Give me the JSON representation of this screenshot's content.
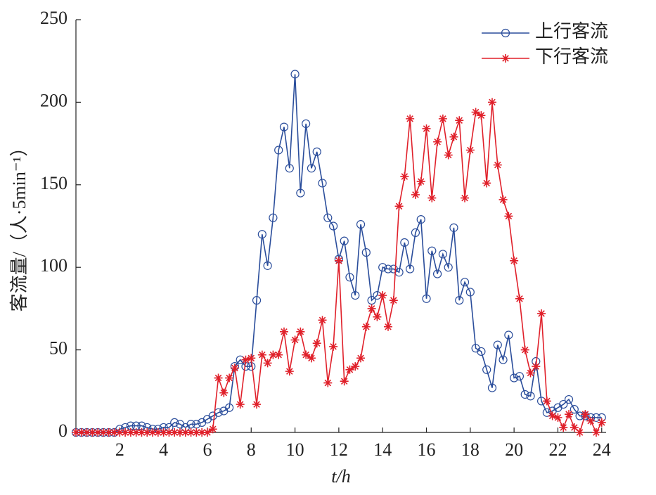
{
  "chart_data": {
    "type": "line",
    "xlabel": "t/h",
    "ylabel": "客流量/（人·5min⁻¹）",
    "x": [
      0,
      0.25,
      0.5,
      0.75,
      1,
      1.25,
      1.5,
      1.75,
      2,
      2.25,
      2.5,
      2.75,
      3,
      3.25,
      3.5,
      3.75,
      4,
      4.25,
      4.5,
      4.75,
      5,
      5.25,
      5.5,
      5.75,
      6,
      6.25,
      6.5,
      6.75,
      7,
      7.25,
      7.5,
      7.75,
      8,
      8.25,
      8.5,
      8.75,
      9,
      9.25,
      9.5,
      9.75,
      10,
      10.25,
      10.5,
      10.75,
      11,
      11.25,
      11.5,
      11.75,
      12,
      12.25,
      12.5,
      12.75,
      13,
      13.25,
      13.5,
      13.75,
      14,
      14.25,
      14.5,
      14.75,
      15,
      15.25,
      15.5,
      15.75,
      16,
      16.25,
      16.5,
      16.75,
      17,
      17.25,
      17.5,
      17.75,
      18,
      18.25,
      18.5,
      18.75,
      19,
      19.25,
      19.5,
      19.75,
      20,
      20.25,
      20.5,
      20.75,
      21,
      21.25,
      21.5,
      21.75,
      22,
      22.25,
      22.5,
      22.75,
      23,
      23.25,
      23.5,
      23.75,
      24
    ],
    "series": [
      {
        "name": "上行客流",
        "color": "#2a4d9b",
        "marker": "circle",
        "values": [
          0,
          0,
          0,
          0,
          0,
          0,
          0,
          0,
          2,
          3,
          4,
          4,
          4,
          3,
          2,
          2,
          3,
          3,
          6,
          5,
          3,
          5,
          5,
          6,
          8,
          10,
          12,
          13,
          15,
          40,
          44,
          40,
          40,
          80,
          120,
          101,
          130,
          171,
          185,
          160,
          217,
          145,
          187,
          160,
          170,
          151,
          130,
          125,
          105,
          116,
          94,
          83,
          126,
          109,
          80,
          83,
          100,
          99,
          99,
          97,
          115,
          99,
          121,
          129,
          81,
          110,
          96,
          108,
          100,
          124,
          80,
          91,
          85,
          51,
          49,
          38,
          27,
          53,
          44,
          59,
          33,
          34,
          23,
          22,
          43,
          19,
          12,
          13,
          15,
          17,
          20,
          14,
          10,
          10,
          9,
          9,
          9
        ]
      },
      {
        "name": "下行客流",
        "color": "#e0202a",
        "marker": "asterisk",
        "values": [
          0,
          0,
          0,
          0,
          0,
          0,
          0,
          0,
          0,
          0,
          0,
          0,
          0,
          0,
          0,
          0,
          0,
          0,
          0,
          0,
          0,
          0,
          0,
          0,
          0,
          2,
          33,
          24,
          33,
          39,
          17,
          44,
          45,
          17,
          47,
          42,
          47,
          47,
          61,
          37,
          56,
          61,
          47,
          45,
          54,
          68,
          30,
          52,
          104,
          31,
          38,
          40,
          45,
          64,
          75,
          70,
          83,
          64,
          80,
          137,
          155,
          190,
          144,
          152,
          184,
          142,
          176,
          190,
          168,
          179,
          189,
          142,
          171,
          194,
          192,
          151,
          200,
          162,
          141,
          131,
          104,
          81,
          50,
          36,
          40,
          72,
          19,
          10,
          9,
          3,
          11,
          3,
          0,
          11,
          7,
          0,
          6
        ]
      }
    ],
    "xlim": [
      0,
      24.2
    ],
    "xticks": [
      2,
      4,
      6,
      8,
      10,
      12,
      14,
      16,
      18,
      20,
      22,
      24
    ],
    "ylim": [
      0,
      250
    ],
    "yticks": [
      0,
      50,
      100,
      150,
      200,
      250
    ],
    "legend": "upper right"
  }
}
